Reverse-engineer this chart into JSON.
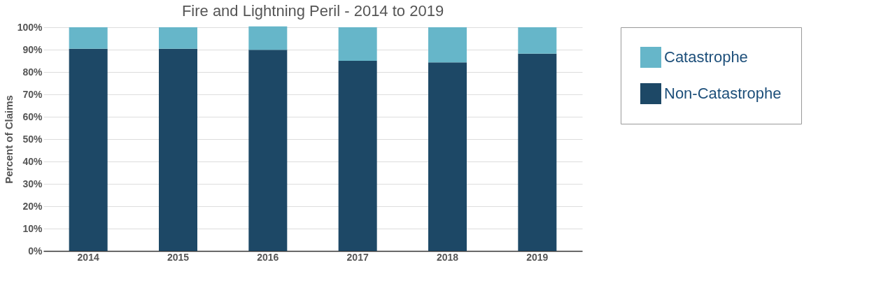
{
  "chart_data": {
    "type": "bar",
    "title": "Fire and Lightning Peril - 2014 to 2019",
    "ylabel": "Percent of Claims",
    "categories": [
      "2014",
      "2015",
      "2016",
      "2017",
      "2018",
      "2019"
    ],
    "series": [
      {
        "name": "Non-Catastrophe",
        "color": "#1d4866",
        "values": [
          90.4,
          90.4,
          89.9,
          85.0,
          84.3,
          88.2
        ]
      },
      {
        "name": "Catastrophe",
        "color": "#66b6c9",
        "values": [
          9.6,
          9.6,
          10.5,
          15.0,
          15.7,
          11.8
        ]
      }
    ],
    "stacked": true,
    "ylim": [
      0,
      100
    ],
    "yticks": [
      {
        "value": 0,
        "label": "0%"
      },
      {
        "value": 10,
        "label": "10%"
      },
      {
        "value": 20,
        "label": "20%"
      },
      {
        "value": 30,
        "label": "30%"
      },
      {
        "value": 40,
        "label": "40%"
      },
      {
        "value": 50,
        "label": "50%"
      },
      {
        "value": 60,
        "label": "60%"
      },
      {
        "value": 70,
        "label": "70%"
      },
      {
        "value": 80,
        "label": "80%"
      },
      {
        "value": 90,
        "label": "90%"
      },
      {
        "value": 100,
        "label": "100%"
      }
    ],
    "grid": "y",
    "legend": "right"
  }
}
